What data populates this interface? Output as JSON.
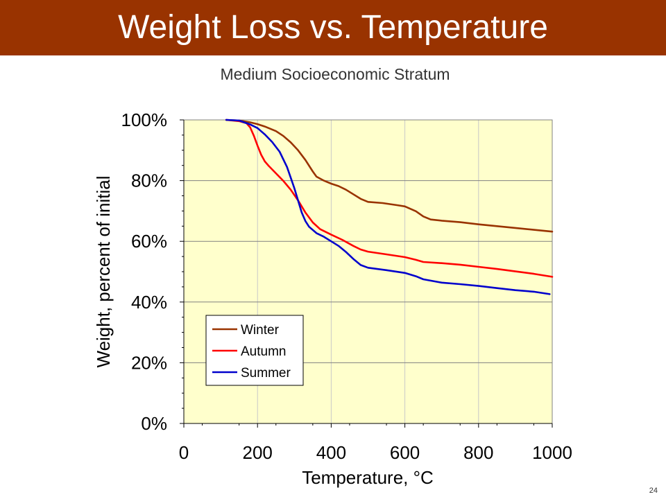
{
  "slide": {
    "title": "Weight Loss vs. Temperature",
    "subtitle": "Medium Socioeconomic Stratum",
    "page_number": "24"
  },
  "colors": {
    "title_bar": "#993300",
    "plot_background": "#FFFFCC",
    "winter": "#993300",
    "autumn": "#FF0000",
    "summer": "#0000CC"
  },
  "chart_data": {
    "type": "line",
    "title": "",
    "xlabel": "Temperature, °C",
    "ylabel": "Weight, percent of initial",
    "xlim": [
      0,
      1000
    ],
    "ylim": [
      0,
      100
    ],
    "x_ticks": [
      0,
      200,
      400,
      600,
      800,
      1000
    ],
    "x_tick_labels": [
      "0",
      "200",
      "400",
      "600",
      "800",
      "1000"
    ],
    "y_ticks": [
      0,
      20,
      40,
      60,
      80,
      100
    ],
    "y_tick_labels": [
      "0%",
      "20%",
      "40%",
      "60%",
      "80%",
      "100%"
    ],
    "grid": true,
    "legend_position": "bottom-left",
    "series": [
      {
        "name": "Winter",
        "color": "#993300",
        "x": [
          115,
          150,
          180,
          200,
          220,
          250,
          270,
          290,
          310,
          330,
          350,
          360,
          380,
          400,
          420,
          440,
          460,
          480,
          500,
          540,
          580,
          600,
          630,
          650,
          670,
          700,
          750,
          800,
          850,
          900,
          950,
          1000
        ],
        "y": [
          100,
          99.8,
          99.2,
          98.6,
          97.8,
          96.3,
          94.7,
          92.6,
          90,
          86.8,
          83,
          81.3,
          80,
          79,
          78.2,
          77,
          75.5,
          74,
          73,
          72.6,
          71.9,
          71.5,
          69.9,
          68.2,
          67.2,
          66.8,
          66.3,
          65.6,
          65,
          64.4,
          63.8,
          63.2
        ]
      },
      {
        "name": "Autumn",
        "color": "#FF0000",
        "x": [
          115,
          150,
          170,
          180,
          190,
          200,
          210,
          220,
          230,
          250,
          270,
          290,
          310,
          330,
          350,
          370,
          400,
          430,
          460,
          480,
          500,
          550,
          600,
          630,
          650,
          700,
          750,
          800,
          850,
          900,
          950,
          1000
        ],
        "y": [
          100,
          99.6,
          98.9,
          97.5,
          94.8,
          91.5,
          88.5,
          86.3,
          84.9,
          82.4,
          79.9,
          77,
          73.5,
          69.5,
          66.2,
          64,
          62.2,
          60.5,
          58.5,
          57.3,
          56.6,
          55.7,
          54.8,
          53.9,
          53.2,
          52.8,
          52.3,
          51.6,
          50.9,
          50.1,
          49.3,
          48.3
        ]
      },
      {
        "name": "Summer",
        "color": "#0000CC",
        "x": [
          115,
          150,
          180,
          200,
          220,
          240,
          260,
          280,
          290,
          300,
          310,
          320,
          330,
          340,
          360,
          380,
          400,
          420,
          440,
          460,
          480,
          500,
          550,
          600,
          630,
          650,
          700,
          750,
          800,
          850,
          900,
          950,
          993
        ],
        "y": [
          100,
          99.8,
          98.5,
          97.3,
          95.2,
          92.7,
          89.5,
          84.5,
          81,
          77.5,
          73.5,
          69.5,
          66.7,
          64.8,
          62.7,
          61.5,
          60,
          58.5,
          56.5,
          54.2,
          52.2,
          51.3,
          50.5,
          49.6,
          48.5,
          47.5,
          46.4,
          45.9,
          45.3,
          44.6,
          43.9,
          43.4,
          42.6
        ]
      }
    ]
  }
}
